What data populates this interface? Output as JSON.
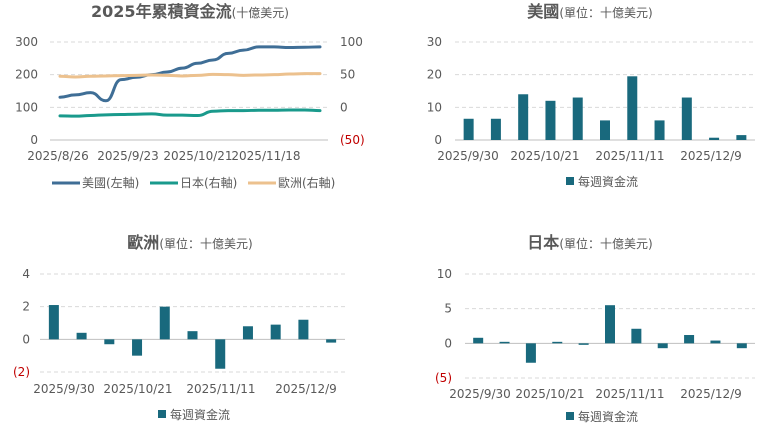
{
  "chart_data": [
    {
      "type": "line",
      "title_main": "2025年累積資金流",
      "title_unit": "(十億美元)",
      "x_tick_labels": [
        "2025/8/26",
        "2025/9/23",
        "2025/10/21",
        "2025/11/18"
      ],
      "y_left": {
        "min": 0,
        "max": 300,
        "ticks": [
          "0",
          "100",
          "200",
          "300"
        ]
      },
      "y_right": {
        "min": -50,
        "max": 100,
        "ticks": [
          "(50)",
          "0",
          "50",
          "100"
        ]
      },
      "series": [
        {
          "name": "美國(左軸)",
          "axis": "left",
          "color": "#3f6e96",
          "x": [
            0,
            1,
            2,
            3,
            4,
            5,
            6,
            7,
            8,
            9,
            10,
            11,
            12,
            13,
            14,
            15,
            16,
            17
          ],
          "values": [
            131,
            138,
            145,
            120,
            185,
            192,
            200,
            208,
            220,
            235,
            245,
            265,
            275,
            285,
            285,
            283,
            284,
            285
          ]
        },
        {
          "name": "日本(右軸)",
          "axis": "right",
          "color": "#1a9a8c",
          "x": [
            0,
            1,
            2,
            3,
            4,
            5,
            6,
            7,
            8,
            9,
            10,
            11,
            12,
            13,
            14,
            15,
            16,
            17
          ],
          "values": [
            -13,
            -13.5,
            -12.5,
            -11.5,
            -11,
            -10.5,
            -10,
            -12,
            -12,
            -12.5,
            -6,
            -5,
            -5,
            -4.5,
            -4.5,
            -4,
            -4,
            -5
          ]
        },
        {
          "name": "歐洲(右軸)",
          "axis": "right",
          "color": "#ecc18e",
          "x": [
            0,
            1,
            2,
            3,
            4,
            5,
            6,
            7,
            8,
            9,
            10,
            11,
            12,
            13,
            14,
            15,
            16,
            17
          ],
          "values": [
            47.5,
            46.5,
            47.5,
            48,
            48.5,
            49,
            49.5,
            49,
            48,
            49,
            50.5,
            50,
            49,
            49.5,
            50,
            51,
            51.5,
            51.5
          ]
        }
      ]
    },
    {
      "type": "bar",
      "title_main": "美國",
      "title_unit": "(單位：十億美元)",
      "x_tick_labels": [
        "2025/9/30",
        "2025/10/21",
        "2025/11/11",
        "2025/12/9"
      ],
      "y": {
        "min": 0,
        "max": 30,
        "ticks": [
          "0",
          "10",
          "20",
          "30"
        ]
      },
      "color": "#19697d",
      "series_name": "每週資金流",
      "values": [
        6.5,
        6.5,
        14,
        12,
        13,
        6,
        19.5,
        6,
        13,
        0.7,
        1.5
      ]
    },
    {
      "type": "bar",
      "title_main": "歐洲",
      "title_unit": "(單位：十億美元)",
      "x_tick_labels": [
        "2025/9/30",
        "2025/10/21",
        "2025/11/11",
        "2025/12/9"
      ],
      "y": {
        "min": -2,
        "max": 4,
        "ticks": [
          "(2)",
          "0",
          "2",
          "4"
        ]
      },
      "color": "#19697d",
      "series_name": "每週資金流",
      "values": [
        2.1,
        0.4,
        -0.3,
        -1.0,
        2.0,
        0.5,
        -1.8,
        0.8,
        0.9,
        1.2,
        -0.2
      ]
    },
    {
      "type": "bar",
      "title_main": "日本",
      "title_unit": "(單位：十億美元)",
      "x_tick_labels": [
        "2025/9/30",
        "2025/10/21",
        "2025/11/11",
        "2025/12/9"
      ],
      "y": {
        "min": -5,
        "max": 10,
        "ticks": [
          "(5)",
          "0",
          "5",
          "10"
        ]
      },
      "color": "#19697d",
      "series_name": "每週資金流",
      "values": [
        0.8,
        0.2,
        -2.8,
        0.2,
        -0.2,
        5.5,
        2.1,
        -0.7,
        1.2,
        0.4,
        -0.7
      ]
    }
  ]
}
